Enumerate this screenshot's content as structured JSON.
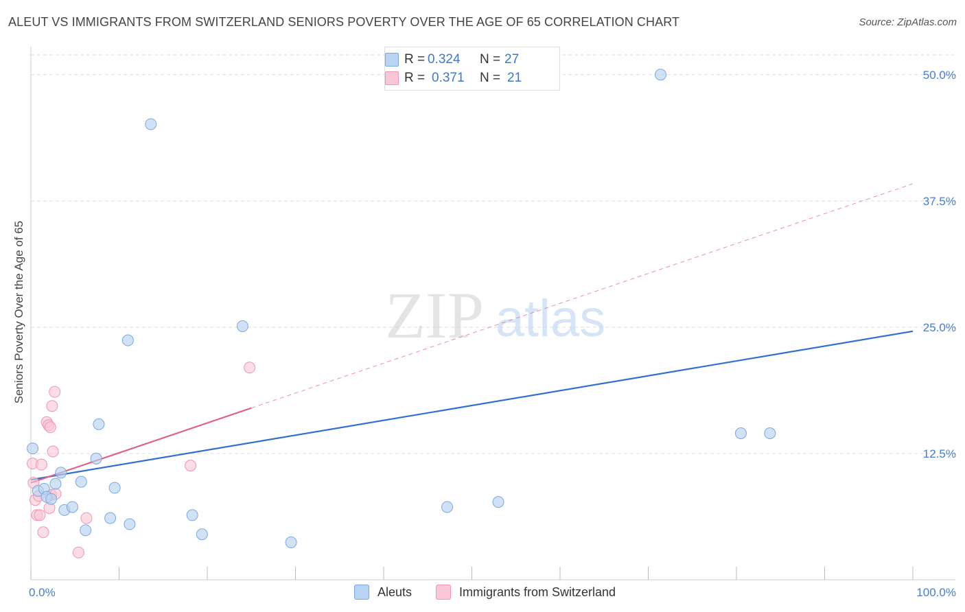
{
  "title": "ALEUT VS IMMIGRANTS FROM SWITZERLAND SENIORS POVERTY OVER THE AGE OF 65 CORRELATION CHART",
  "source": "Source: ZipAtlas.com",
  "watermark": {
    "zip": "ZIP",
    "atlas": "atlas"
  },
  "legend": {
    "r_label": "R =",
    "n_label": "N =",
    "aleut": {
      "r": "0.324",
      "n": "27"
    },
    "swiss": {
      "r": "0.371",
      "n": "21"
    }
  },
  "bottom_legend": {
    "aleut": "Aleuts",
    "swiss": "Immigrants from Switzerland"
  },
  "colors": {
    "aleut_fill": "#b9d3f3",
    "aleut_stroke": "#7aa7de",
    "aleut_line": "#2f6fd0",
    "swiss_fill": "#f9c7d6",
    "swiss_stroke": "#ef95b1",
    "swiss_line": "#e0608c",
    "tick_label": "#4a7cc7",
    "grid": "#dddddd"
  },
  "chart_data": {
    "type": "scatter",
    "title": "ALEUT VS IMMIGRANTS FROM SWITZERLAND SENIORS POVERTY OVER THE AGE OF 65 CORRELATION CHART",
    "xlabel": "",
    "ylabel": "Seniors Poverty Over the Age of 65",
    "xlim": [
      0,
      100
    ],
    "ylim": [
      0,
      52.5
    ],
    "x_tick_labels": [
      "0.0%",
      "100.0%"
    ],
    "y_ticks": [
      12.5,
      25.0,
      37.5,
      50.0
    ],
    "y_tick_labels": [
      "12.5%",
      "25.0%",
      "37.5%",
      "50.0%"
    ],
    "series": [
      {
        "name": "Aleuts",
        "r": 0.324,
        "n": 27,
        "points": [
          [
            0.2,
            13.0
          ],
          [
            0.8,
            8.8
          ],
          [
            1.5,
            9.0
          ],
          [
            1.8,
            8.2
          ],
          [
            2.3,
            8.0
          ],
          [
            2.8,
            9.5
          ],
          [
            3.4,
            10.6
          ],
          [
            3.8,
            6.9
          ],
          [
            4.7,
            7.2
          ],
          [
            5.7,
            9.7
          ],
          [
            6.2,
            4.9
          ],
          [
            7.4,
            12.0
          ],
          [
            7.7,
            15.4
          ],
          [
            9.0,
            6.1
          ],
          [
            9.5,
            9.1
          ],
          [
            11.0,
            23.7
          ],
          [
            11.2,
            5.5
          ],
          [
            13.6,
            45.1
          ],
          [
            18.3,
            6.4
          ],
          [
            19.4,
            4.5
          ],
          [
            24.0,
            25.1
          ],
          [
            29.5,
            3.7
          ],
          [
            47.2,
            7.2
          ],
          [
            53.0,
            7.7
          ],
          [
            71.4,
            50.0
          ],
          [
            80.5,
            14.5
          ],
          [
            83.8,
            14.5
          ]
        ],
        "trend": {
          "x": [
            0,
            100
          ],
          "y": [
            9.9,
            24.6
          ],
          "style": "solid"
        }
      },
      {
        "name": "Immigrants from Switzerland",
        "r": 0.371,
        "n": 21,
        "points": [
          [
            0.2,
            11.5
          ],
          [
            0.3,
            9.6
          ],
          [
            0.5,
            7.9
          ],
          [
            0.7,
            6.4
          ],
          [
            0.9,
            8.3
          ],
          [
            1.0,
            6.4
          ],
          [
            1.2,
            11.4
          ],
          [
            1.4,
            4.7
          ],
          [
            1.8,
            15.6
          ],
          [
            2.0,
            15.3
          ],
          [
            2.1,
            7.1
          ],
          [
            2.2,
            15.1
          ],
          [
            2.3,
            8.4
          ],
          [
            2.4,
            17.2
          ],
          [
            2.5,
            12.7
          ],
          [
            2.7,
            18.6
          ],
          [
            2.8,
            8.5
          ],
          [
            5.4,
            2.7
          ],
          [
            6.3,
            6.1
          ],
          [
            18.1,
            11.3
          ],
          [
            24.8,
            21.0
          ]
        ],
        "trend": {
          "x": [
            0,
            25
          ],
          "y": [
            9.6,
            17.0
          ],
          "style": "solid"
        },
        "trend_extension": {
          "x": [
            25,
            100
          ],
          "y": [
            17.0,
            39.2
          ],
          "style": "dashed"
        }
      }
    ]
  }
}
